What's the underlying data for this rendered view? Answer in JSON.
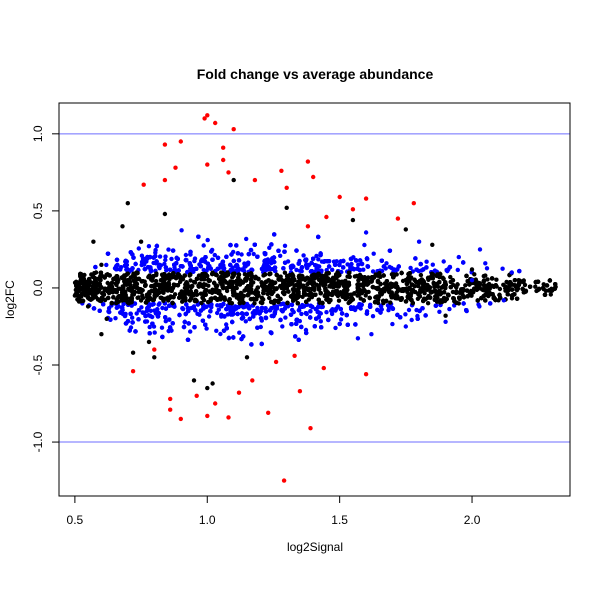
{
  "chart_data": {
    "type": "scatter",
    "title": "Fold change vs average abundance",
    "xlabel": "log2Signal",
    "ylabel": "log2FC",
    "xlim": [
      0.44,
      2.37
    ],
    "ylim": [
      -1.35,
      1.2
    ],
    "x_ticks": [
      0.5,
      1.0,
      1.5,
      2.0
    ],
    "x_tick_labels": [
      "0.5",
      "1.0",
      "1.5",
      "2.0"
    ],
    "y_ticks": [
      -1.0,
      -0.5,
      0.0,
      0.5,
      1.0
    ],
    "y_tick_labels": [
      "-1.0",
      "-0.5",
      "0.0",
      "0.5",
      "1.0"
    ],
    "grid": false,
    "reference_lines": [
      {
        "axis": "y",
        "value": 1.0,
        "color": "#6e6eff"
      },
      {
        "axis": "y",
        "value": -1.0,
        "color": "#6e6eff"
      }
    ],
    "series": [
      {
        "color": "#000000",
        "band": "core",
        "threshold": 0.1,
        "points": [
          [
            0.5,
            -0.05
          ],
          [
            0.52,
            0.08
          ],
          [
            0.55,
            -0.12
          ],
          [
            0.6,
            0.15
          ],
          [
            0.62,
            -0.2
          ],
          [
            0.75,
            0.3
          ],
          [
            0.78,
            -0.35
          ],
          [
            0.7,
            0.55
          ],
          [
            0.8,
            -0.45
          ],
          [
            1.1,
            0.7
          ],
          [
            1.15,
            -0.45
          ],
          [
            1.3,
            0.52
          ],
          [
            1.55,
            0.44
          ],
          [
            1.75,
            0.38
          ],
          [
            1.85,
            0.28
          ],
          [
            1.9,
            -0.18
          ],
          [
            2.0,
            0.12
          ],
          [
            2.1,
            -0.08
          ],
          [
            2.2,
            0.02
          ],
          [
            2.3,
            -0.02
          ],
          [
            2.25,
            0.04
          ],
          [
            2.15,
            -0.05
          ],
          [
            2.05,
            0.08
          ],
          [
            1.95,
            -0.1
          ],
          [
            0.95,
            -0.6
          ],
          [
            1.0,
            -0.65
          ],
          [
            0.72,
            -0.42
          ],
          [
            0.68,
            0.4
          ],
          [
            0.58,
            0.1
          ],
          [
            0.54,
            -0.02
          ],
          [
            0.57,
            0.3
          ],
          [
            0.6,
            -0.3
          ],
          [
            0.84,
            0.48
          ],
          [
            1.02,
            -0.62
          ]
        ]
      },
      {
        "color": "#0000ff",
        "band": "middle",
        "threshold": 0.4,
        "points": [
          [
            2.15,
            0.1
          ],
          [
            2.12,
            -0.08
          ],
          [
            2.05,
            0.16
          ],
          [
            2.03,
            0.25
          ],
          [
            1.95,
            0.2
          ],
          [
            1.9,
            -0.22
          ],
          [
            1.98,
            -0.15
          ],
          [
            2.0,
            0.05
          ],
          [
            1.8,
            0.3
          ],
          [
            1.75,
            -0.25
          ],
          [
            1.6,
            0.36
          ],
          [
            1.62,
            -0.3
          ]
        ]
      },
      {
        "color": "#ff0000",
        "band": "outer",
        "points": [
          [
            0.99,
            1.1
          ],
          [
            1.0,
            1.12
          ],
          [
            1.03,
            1.07
          ],
          [
            1.1,
            1.03
          ],
          [
            0.84,
            0.93
          ],
          [
            0.9,
            0.95
          ],
          [
            1.06,
            0.91
          ],
          [
            1.06,
            0.83
          ],
          [
            1.38,
            0.82
          ],
          [
            0.88,
            0.78
          ],
          [
            1.0,
            0.8
          ],
          [
            1.08,
            0.75
          ],
          [
            1.28,
            0.76
          ],
          [
            0.84,
            0.7
          ],
          [
            1.18,
            0.7
          ],
          [
            1.4,
            0.72
          ],
          [
            0.76,
            0.67
          ],
          [
            1.3,
            0.65
          ],
          [
            1.5,
            0.59
          ],
          [
            1.6,
            0.58
          ],
          [
            1.78,
            0.55
          ],
          [
            1.55,
            0.51
          ],
          [
            1.72,
            0.45
          ],
          [
            1.45,
            0.46
          ],
          [
            1.38,
            0.4
          ],
          [
            1.29,
            -1.25
          ],
          [
            1.39,
            -0.91
          ],
          [
            1.23,
            -0.81
          ],
          [
            0.86,
            -0.79
          ],
          [
            0.9,
            -0.85
          ],
          [
            1.0,
            -0.83
          ],
          [
            1.08,
            -0.84
          ],
          [
            0.86,
            -0.72
          ],
          [
            0.96,
            -0.7
          ],
          [
            1.03,
            -0.75
          ],
          [
            1.12,
            -0.68
          ],
          [
            1.35,
            -0.67
          ],
          [
            1.6,
            -0.56
          ],
          [
            0.72,
            -0.54
          ],
          [
            1.44,
            -0.52
          ],
          [
            1.33,
            -0.44
          ],
          [
            0.8,
            -0.4
          ],
          [
            1.17,
            -0.6
          ],
          [
            1.26,
            -0.48
          ]
        ]
      }
    ]
  }
}
